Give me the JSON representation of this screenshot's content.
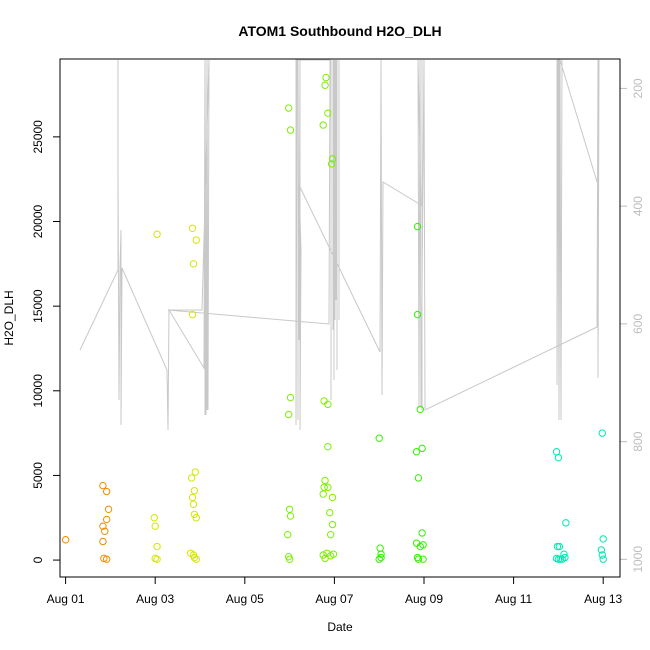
{
  "chart_data": {
    "type": "scatter",
    "title": "ATOM1 Southbound H2O_DLH",
    "xlabel": "Date",
    "ylabel": "H2O_DLH",
    "xlim": [
      "2016-07-31T21:00",
      "2016-08-13T09:00"
    ],
    "ylim": [
      -1000,
      29600
    ],
    "x_ticks": [
      {
        "t": "2016-08-01T00:00",
        "label": "Aug 01"
      },
      {
        "t": "2016-08-03T00:00",
        "label": "Aug 03"
      },
      {
        "t": "2016-08-05T00:00",
        "label": "Aug 05"
      },
      {
        "t": "2016-08-07T00:00",
        "label": "Aug 07"
      },
      {
        "t": "2016-08-09T00:00",
        "label": "Aug 09"
      },
      {
        "t": "2016-08-11T00:00",
        "label": "Aug 11"
      },
      {
        "t": "2016-08-13T00:00",
        "label": "Aug 13"
      }
    ],
    "y_ticks": [
      0,
      5000,
      10000,
      15000,
      20000,
      25000
    ],
    "secondary_axis": {
      "side": "right",
      "reversed": true,
      "ylim": [
        1030,
        150
      ],
      "ticks": [
        200,
        400,
        600,
        800,
        1000
      ],
      "color": "#bdbdbd"
    },
    "grid": false,
    "legend": "none",
    "colors": {
      "axis": "#000000",
      "line": "#c8c8c8",
      "box": "#000000"
    },
    "point_groups": [
      {
        "color": "#f28c00",
        "points": [
          [
            "2016-08-01T00:00",
            1200
          ],
          [
            "2016-08-01T20:00",
            4400
          ],
          [
            "2016-08-01T22:00",
            4050
          ],
          [
            "2016-08-01T23:00",
            3000
          ],
          [
            "2016-08-01T22:00",
            2400
          ],
          [
            "2016-08-01T20:00",
            2000
          ],
          [
            "2016-08-01T21:00",
            1700
          ],
          [
            "2016-08-01T20:00",
            1100
          ],
          [
            "2016-08-01T20:30",
            100
          ],
          [
            "2016-08-01T22:00",
            50
          ]
        ]
      },
      {
        "color": "#d4e600",
        "points": [
          [
            "2016-08-03T01:00",
            19250
          ],
          [
            "2016-08-02T23:30",
            2500
          ],
          [
            "2016-08-03T00:00",
            2000
          ],
          [
            "2016-08-03T01:00",
            800
          ],
          [
            "2016-08-03T00:00",
            100
          ],
          [
            "2016-08-03T01:00",
            50
          ],
          [
            "2016-08-03T20:00",
            19600
          ],
          [
            "2016-08-03T22:00",
            18900
          ],
          [
            "2016-08-03T20:30",
            17500
          ],
          [
            "2016-08-03T20:00",
            14500
          ],
          [
            "2016-08-03T21:30",
            5200
          ],
          [
            "2016-08-03T19:30",
            4850
          ],
          [
            "2016-08-03T21:00",
            4100
          ],
          [
            "2016-08-03T20:00",
            3700
          ],
          [
            "2016-08-03T20:30",
            3300
          ],
          [
            "2016-08-03T21:00",
            2700
          ],
          [
            "2016-08-03T22:00",
            2500
          ],
          [
            "2016-08-03T19:00",
            400
          ],
          [
            "2016-08-03T20:30",
            300
          ],
          [
            "2016-08-03T21:00",
            150
          ],
          [
            "2016-08-03T22:00",
            50
          ]
        ]
      },
      {
        "color": "#7cf000",
        "points": [
          [
            "2016-08-05T23:30",
            26700
          ],
          [
            "2016-08-06T00:30",
            25400
          ],
          [
            "2016-08-06T00:30",
            9600
          ],
          [
            "2016-08-05T23:30",
            8600
          ],
          [
            "2016-08-06T00:00",
            3000
          ],
          [
            "2016-08-06T00:30",
            2600
          ],
          [
            "2016-08-05T23:00",
            1500
          ],
          [
            "2016-08-05T23:30",
            200
          ],
          [
            "2016-08-06T00:00",
            50
          ],
          [
            "2016-08-06T19:30",
            28500
          ],
          [
            "2016-08-06T19:00",
            28050
          ],
          [
            "2016-08-06T20:30",
            26400
          ],
          [
            "2016-08-06T18:00",
            25700
          ],
          [
            "2016-08-06T23:00",
            23700
          ],
          [
            "2016-08-06T22:30",
            23400
          ],
          [
            "2016-08-06T18:30",
            9400
          ],
          [
            "2016-08-06T20:30",
            9200
          ],
          [
            "2016-08-06T20:30",
            6700
          ],
          [
            "2016-08-06T19:00",
            4700
          ],
          [
            "2016-08-06T18:30",
            4300
          ],
          [
            "2016-08-06T20:30",
            4300
          ],
          [
            "2016-08-06T18:00",
            3900
          ],
          [
            "2016-08-06T23:00",
            3700
          ],
          [
            "2016-08-06T21:30",
            2800
          ],
          [
            "2016-08-06T23:00",
            2100
          ],
          [
            "2016-08-06T22:00",
            1500
          ],
          [
            "2016-08-06T18:00",
            300
          ],
          [
            "2016-08-06T20:00",
            400
          ],
          [
            "2016-08-06T22:00",
            250
          ],
          [
            "2016-08-06T23:30",
            350
          ],
          [
            "2016-08-06T19:00",
            100
          ]
        ]
      },
      {
        "color": "#33f000",
        "points": [
          [
            "2016-08-08T00:00",
            7200
          ],
          [
            "2016-08-08T00:30",
            700
          ],
          [
            "2016-08-08T01:00",
            350
          ],
          [
            "2016-08-08T01:00",
            150
          ],
          [
            "2016-08-08T00:00",
            50
          ],
          [
            "2016-08-08T20:30",
            19700
          ],
          [
            "2016-08-08T20:30",
            14500
          ],
          [
            "2016-08-08T22:00",
            8900
          ],
          [
            "2016-08-08T23:00",
            6600
          ],
          [
            "2016-08-08T20:00",
            6400
          ],
          [
            "2016-08-08T21:00",
            4850
          ],
          [
            "2016-08-08T20:00",
            1000
          ],
          [
            "2016-08-08T23:00",
            1600
          ],
          [
            "2016-08-08T22:00",
            800
          ],
          [
            "2016-08-08T23:30",
            900
          ],
          [
            "2016-08-08T20:30",
            150
          ],
          [
            "2016-08-08T21:00",
            50
          ],
          [
            "2016-08-08T23:30",
            50
          ]
        ]
      },
      {
        "color": "#00e8b0",
        "points": [
          [
            "2016-08-11T23:00",
            6400
          ],
          [
            "2016-08-12T00:00",
            6050
          ],
          [
            "2016-08-12T04:00",
            2200
          ],
          [
            "2016-08-11T23:30",
            800
          ],
          [
            "2016-08-12T00:30",
            800
          ],
          [
            "2016-08-12T03:00",
            350
          ],
          [
            "2016-08-11T23:00",
            100
          ],
          [
            "2016-08-12T00:00",
            50
          ],
          [
            "2016-08-12T01:00",
            50
          ],
          [
            "2016-08-12T03:30",
            150
          ],
          [
            "2016-08-12T02:00",
            50
          ],
          [
            "2016-08-12T23:30",
            7500
          ],
          [
            "2016-08-13T00:00",
            1250
          ],
          [
            "2016-08-12T23:00",
            600
          ],
          [
            "2016-08-12T23:30",
            300
          ],
          [
            "2016-08-13T00:00",
            50
          ]
        ]
      }
    ]
  }
}
